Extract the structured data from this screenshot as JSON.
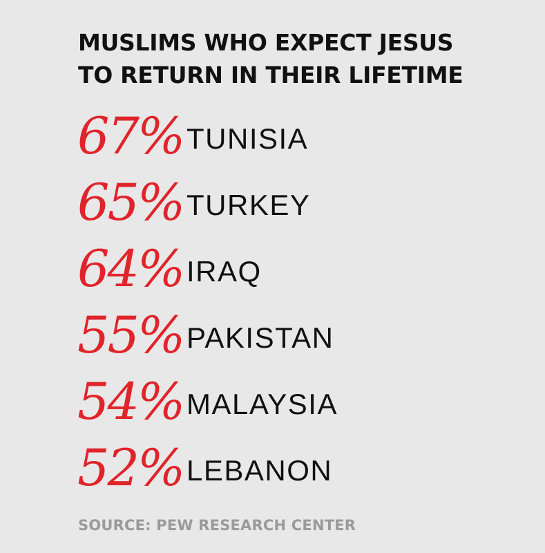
{
  "chart_data": {
    "type": "table",
    "title": [
      "MUSLIMS WHO EXPECT JESUS",
      "TO RETURN IN THEIR LIFETIME"
    ],
    "categories": [
      "TUNISIA",
      "TURKEY",
      "IRAQ",
      "PAKISTAN",
      "MALAYSIA",
      "LEBANON"
    ],
    "values": [
      67,
      65,
      64,
      55,
      54,
      52
    ],
    "value_labels": [
      "67%",
      "65%",
      "64%",
      "55%",
      "54%",
      "52%"
    ],
    "unit": "%",
    "source": "SOURCE: PEW RESEARCH CENTER"
  },
  "colors": {
    "background": "#e8e8e8",
    "value": "#e0242a",
    "text": "#111111",
    "source": "#9a9a9a"
  }
}
